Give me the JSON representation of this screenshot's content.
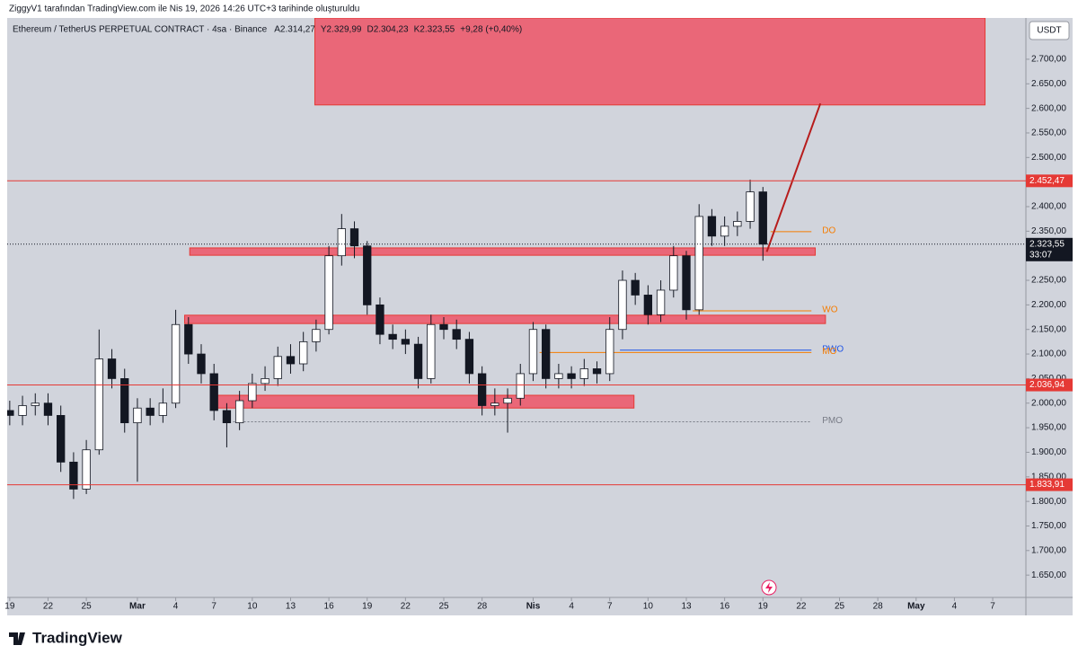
{
  "chart_data": {
    "type": "candlestick",
    "subtitle": "ZiggyV1 tarafından TradingView.com ile Nis 19, 2026 14:26 UTC+3 tarihinde oluşturuldu",
    "title": "Ethereum / TetherUS PERPETUAL CONTRACT · 4sa · Binance",
    "ohlc_legend": [
      {
        "value": 2314.27,
        "label": "A2.314,27"
      },
      {
        "value": 2329.99,
        "label": "Y2.329,99"
      },
      {
        "value": 2304.23,
        "label": "D2.304,23"
      },
      {
        "value": 2323.55,
        "label": "K2.323,55"
      },
      {
        "value": 9.28,
        "label": "+9,28 (+0,40%)"
      }
    ],
    "currency": "USDT",
    "brand": "TradingView",
    "colors": {
      "up": "#ffffff",
      "down": "#131722",
      "outline": "#131722",
      "zone": "#ef5466",
      "line": "#e53935"
    },
    "x": [
      0,
      1,
      2,
      3,
      4,
      5,
      6,
      7,
      8,
      9,
      10,
      11,
      12,
      13,
      14,
      15,
      16,
      17,
      18,
      19,
      20,
      21,
      22,
      23,
      24,
      25,
      26,
      27,
      28,
      29,
      30,
      31,
      32,
      33,
      34,
      35,
      36,
      37,
      38,
      39,
      40,
      41,
      42,
      43,
      44,
      45,
      46,
      47,
      48,
      49,
      50,
      51,
      52,
      53,
      54,
      55,
      56,
      57,
      58,
      59
    ],
    "open": [
      1985,
      1975,
      1995,
      2000,
      1975,
      1880,
      1825,
      1905,
      2090,
      2050,
      1960,
      1990,
      1975,
      2000,
      2160,
      2100,
      2060,
      1985,
      1960,
      2005,
      2040,
      2050,
      2095,
      2080,
      2125,
      2150,
      2300,
      2355,
      2320,
      2200,
      2140,
      2130,
      2120,
      2050,
      2160,
      2150,
      2130,
      2060,
      1995,
      2000,
      2010,
      2060,
      2150,
      2050,
      2060,
      2050,
      2070,
      2060,
      2150,
      2250,
      2220,
      2180,
      2230,
      2300,
      2190,
      2380,
      2340,
      2360,
      2370,
      2430
    ],
    "high": [
      2005,
      2015,
      2020,
      2020,
      1995,
      1900,
      1925,
      2150,
      2110,
      2070,
      2010,
      2010,
      2030,
      2190,
      2175,
      2120,
      2080,
      2000,
      2025,
      2060,
      2075,
      2115,
      2120,
      2145,
      2170,
      2320,
      2385,
      2370,
      2330,
      2215,
      2160,
      2150,
      2135,
      2180,
      2175,
      2170,
      2145,
      2075,
      2030,
      2030,
      2080,
      2165,
      2160,
      2080,
      2075,
      2090,
      2085,
      2175,
      2270,
      2265,
      2240,
      2250,
      2320,
      2310,
      2405,
      2395,
      2380,
      2390,
      2455,
      2440
    ],
    "low": [
      1955,
      1955,
      1975,
      1955,
      1860,
      1805,
      1815,
      1895,
      2030,
      1940,
      1840,
      1955,
      1960,
      1990,
      2080,
      2040,
      1965,
      1910,
      1945,
      1990,
      2025,
      2035,
      2060,
      2065,
      2105,
      2140,
      2280,
      2295,
      2180,
      2120,
      2110,
      2100,
      2030,
      2040,
      2130,
      2110,
      2040,
      1975,
      1975,
      1940,
      1995,
      2045,
      2030,
      2030,
      2030,
      2035,
      2040,
      2045,
      2130,
      2200,
      2160,
      2165,
      2215,
      2170,
      2180,
      2320,
      2320,
      2340,
      2355,
      2290
    ],
    "close": [
      1975,
      1995,
      2000,
      1975,
      1880,
      1825,
      1905,
      2090,
      2050,
      1960,
      1990,
      1975,
      2000,
      2160,
      2100,
      2060,
      1985,
      1960,
      2005,
      2040,
      2050,
      2095,
      2080,
      2125,
      2150,
      2300,
      2355,
      2320,
      2200,
      2140,
      2130,
      2120,
      2050,
      2160,
      2150,
      2130,
      2060,
      1995,
      2000,
      2010,
      2060,
      2150,
      2050,
      2060,
      2050,
      2070,
      2060,
      2150,
      2250,
      2220,
      2180,
      2230,
      2300,
      2190,
      2380,
      2340,
      2360,
      2370,
      2430,
      2323.55
    ],
    "xlim": [
      -0.2,
      79.6
    ],
    "ylim": [
      1568,
      2784
    ],
    "xticks": [
      {
        "value": 0,
        "label": "19"
      },
      {
        "value": 3,
        "label": "22"
      },
      {
        "value": 6,
        "label": "25"
      },
      {
        "value": 10,
        "label": "Mar"
      },
      {
        "value": 13,
        "label": "4"
      },
      {
        "value": 16,
        "label": "7"
      },
      {
        "value": 19,
        "label": "10"
      },
      {
        "value": 22,
        "label": "13"
      },
      {
        "value": 25,
        "label": "16"
      },
      {
        "value": 28,
        "label": "19"
      },
      {
        "value": 31,
        "label": "22"
      },
      {
        "value": 34,
        "label": "25"
      },
      {
        "value": 37,
        "label": "28"
      },
      {
        "value": 41,
        "label": "Nis"
      },
      {
        "value": 44,
        "label": "4"
      },
      {
        "value": 47,
        "label": "7"
      },
      {
        "value": 50,
        "label": "10"
      },
      {
        "value": 53,
        "label": "13"
      },
      {
        "value": 56,
        "label": "16"
      },
      {
        "value": 59,
        "label": "19"
      },
      {
        "value": 62,
        "label": "22"
      },
      {
        "value": 65,
        "label": "25"
      },
      {
        "value": 68,
        "label": "28"
      },
      {
        "value": 71,
        "label": "May"
      },
      {
        "value": 74,
        "label": "4"
      },
      {
        "value": 77,
        "label": "7"
      }
    ],
    "yticks": [
      {
        "value": 1650,
        "label": "1.650,00"
      },
      {
        "value": 1700,
        "label": "1.700,00"
      },
      {
        "value": 1750,
        "label": "1.750,00"
      },
      {
        "value": 1800,
        "label": "1.800,00"
      },
      {
        "value": 1850,
        "label": "1.850,00"
      },
      {
        "value": 1900,
        "label": "1.900,00"
      },
      {
        "value": 1950,
        "label": "1.950,00"
      },
      {
        "value": 2000,
        "label": "2.000,00"
      },
      {
        "value": 2050,
        "label": "2.050,00"
      },
      {
        "value": 2100,
        "label": "2.100,00"
      },
      {
        "value": 2150,
        "label": "2.150,00"
      },
      {
        "value": 2200,
        "label": "2.200,00"
      },
      {
        "value": 2250,
        "label": "2.250,00"
      },
      {
        "value": 2300,
        "label": "2.300,00"
      },
      {
        "value": 2350,
        "label": "2.350,00"
      },
      {
        "value": 2400,
        "label": "2.400,00"
      },
      {
        "value": 2450,
        "label": "2.450,00"
      },
      {
        "value": 2500,
        "label": "2.500,00"
      },
      {
        "value": 2550,
        "label": "2.550,00"
      },
      {
        "value": 2600,
        "label": "2.600,00"
      },
      {
        "value": 2650,
        "label": "2.650,00"
      },
      {
        "value": 2700,
        "label": "2.700,00"
      }
    ],
    "hlines": [
      {
        "value": 2452.47,
        "label": "2.452,47"
      },
      {
        "value": 2036.94,
        "label": "2.036,94"
      },
      {
        "value": 1833.91,
        "label": "1.833,91"
      }
    ],
    "current": {
      "value": 2323.55,
      "label": "2.323,55",
      "countdown": "33:07"
    },
    "zones": [
      {
        "x0": 23.9,
        "x1": 76.4,
        "y0": 2607,
        "y1": 2784
      },
      {
        "x0": 14.1,
        "x1": 63.1,
        "y0": 2301,
        "y1": 2316
      },
      {
        "x0": 13.7,
        "x1": 63.9,
        "y0": 2162,
        "y1": 2179
      },
      {
        "x0": 16.1,
        "x1": 48.9,
        "y0": 1990,
        "y1": 2016
      }
    ],
    "levels": [
      {
        "name": "DO",
        "value": 2349,
        "x0": 59.6,
        "x1": 62.8,
        "color": "#f57c00"
      },
      {
        "name": "WO",
        "value": 2188,
        "x0": 53.5,
        "x1": 62.8,
        "color": "#f57c00"
      },
      {
        "name": "PWO",
        "value": 2108,
        "x0": 47.8,
        "x1": 62.8,
        "color": "#1e53e5"
      },
      {
        "name": "MO",
        "value": 2103,
        "x0": 41.5,
        "x1": 62.8,
        "color": "#f57c00"
      },
      {
        "name": "PMO",
        "value": 1962,
        "x0": 17.5,
        "x1": 62.8,
        "color": "#787b86"
      }
    ],
    "projection": {
      "x": [
        59.3,
        63.5
      ],
      "y": [
        2308,
        2610
      ]
    }
  }
}
